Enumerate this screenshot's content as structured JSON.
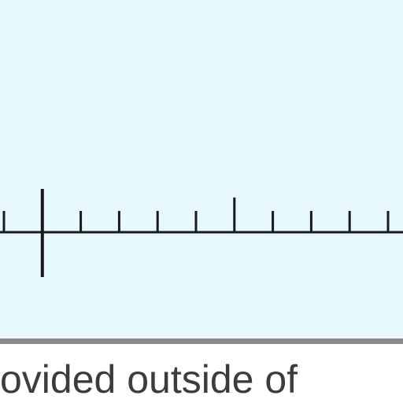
{
  "number_line": {
    "tick_count": 11,
    "major_tick_indices": [
      6
    ],
    "origin_tick_index": 1,
    "line_color": "#1a1a1a",
    "background_color": "#e8f9fd"
  },
  "caption": {
    "text": "ovided outside of"
  }
}
